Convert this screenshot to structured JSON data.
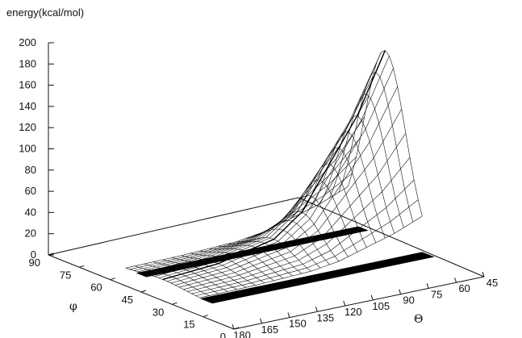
{
  "chart_data": {
    "type": "surface",
    "zlabel": "energy(kcal/mol)",
    "xlabel": "Θ",
    "ylabel": "φ",
    "z_ticks": [
      0,
      20,
      40,
      60,
      80,
      100,
      120,
      140,
      160,
      180,
      200
    ],
    "x_ticks": [
      180,
      165,
      150,
      135,
      120,
      105,
      90,
      75,
      60,
      45
    ],
    "y_ticks": [
      0,
      15,
      30,
      45,
      60,
      75,
      90
    ],
    "zlim": [
      0,
      200
    ],
    "xlim": [
      180,
      45
    ],
    "ylim": [
      0,
      90
    ],
    "surface_ridge": {
      "description_points": [
        {
          "theta": 165,
          "phi": 45,
          "energy": 4
        },
        {
          "theta": 135,
          "phi": 45,
          "energy": 8
        },
        {
          "theta": 105,
          "phi": 45,
          "energy": 20
        },
        {
          "theta": 90,
          "phi": 45,
          "energy": 40
        },
        {
          "theta": 75,
          "phi": 45,
          "energy": 80
        },
        {
          "theta": 60,
          "phi": 45,
          "energy": 120
        },
        {
          "theta": 45,
          "phi": 45,
          "energy": 176
        }
      ]
    }
  }
}
